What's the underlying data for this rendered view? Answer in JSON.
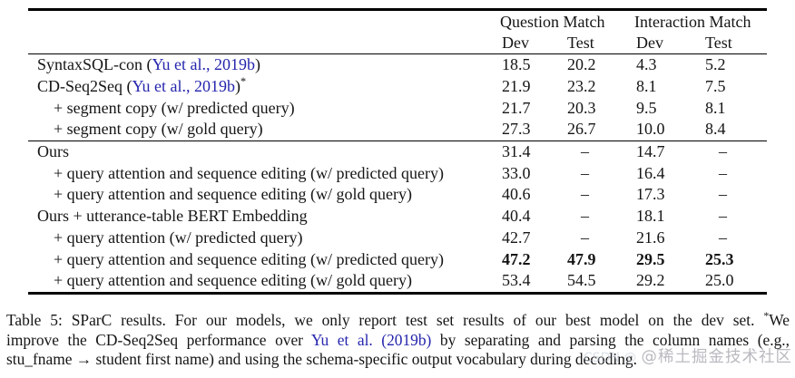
{
  "colors": {
    "citation_blue": "#2525ad",
    "text_black": "#151515",
    "rule_black": "#000000"
  },
  "table": {
    "group_headers": [
      {
        "label": "Question Match"
      },
      {
        "label": "Interaction Match"
      }
    ],
    "sub_headers": [
      "Dev",
      "Test",
      "Dev",
      "Test"
    ],
    "rows": [
      {
        "indent": false,
        "label_parts": [
          {
            "text": "SyntaxSQL-con ("
          },
          {
            "text": "Yu et al., 2019b",
            "style": "cite"
          },
          {
            "text": ")"
          }
        ],
        "values": [
          "18.5",
          "20.2",
          "4.3",
          "5.2"
        ],
        "bold_values": false,
        "rule_after": false
      },
      {
        "indent": false,
        "label_parts": [
          {
            "text": "CD-Seq2Seq ("
          },
          {
            "text": "Yu et al., 2019b",
            "style": "cite"
          },
          {
            "text": ")"
          },
          {
            "text": "*",
            "style": "sup"
          }
        ],
        "values": [
          "21.9",
          "23.2",
          "8.1",
          "7.5"
        ],
        "bold_values": false,
        "rule_after": false
      },
      {
        "indent": true,
        "label_parts": [
          {
            "text": "+ segment copy (w/ predicted query)"
          }
        ],
        "values": [
          "21.7",
          "20.3",
          "9.5",
          "8.1"
        ],
        "bold_values": false,
        "rule_after": false
      },
      {
        "indent": true,
        "label_parts": [
          {
            "text": "+ segment copy (w/ gold query)"
          }
        ],
        "values": [
          "27.3",
          "26.7",
          "10.0",
          "8.4"
        ],
        "bold_values": false,
        "rule_after": true
      },
      {
        "indent": false,
        "label_parts": [
          {
            "text": "Ours"
          }
        ],
        "values": [
          "31.4",
          "–",
          "14.7",
          "–"
        ],
        "bold_values": false,
        "rule_after": false
      },
      {
        "indent": true,
        "label_parts": [
          {
            "text": "+ query attention and sequence editing (w/ predicted query)"
          }
        ],
        "values": [
          "33.0",
          "–",
          "16.4",
          "–"
        ],
        "bold_values": false,
        "rule_after": false
      },
      {
        "indent": true,
        "label_parts": [
          {
            "text": "+ query attention and sequence editing (w/ gold query)"
          }
        ],
        "values": [
          "40.6",
          "–",
          "17.3",
          "–"
        ],
        "bold_values": false,
        "rule_after": false
      },
      {
        "indent": false,
        "label_parts": [
          {
            "text": "Ours + utterance-table BERT Embedding"
          }
        ],
        "values": [
          "40.4",
          "–",
          "18.1",
          "–"
        ],
        "bold_values": false,
        "rule_after": false
      },
      {
        "indent": true,
        "label_parts": [
          {
            "text": "+ query attention (w/ predicted query)"
          }
        ],
        "values": [
          "42.7",
          "–",
          "21.6",
          "–"
        ],
        "bold_values": false,
        "rule_after": false
      },
      {
        "indent": true,
        "label_parts": [
          {
            "text": "+ query attention and sequence editing (w/ predicted query)"
          }
        ],
        "values": [
          "47.2",
          "47.9",
          "29.5",
          "25.3"
        ],
        "bold_values": true,
        "rule_after": false
      },
      {
        "indent": true,
        "label_parts": [
          {
            "text": "+ query attention and sequence editing (w/ gold query)"
          }
        ],
        "values": [
          "53.4",
          "54.5",
          "29.2",
          "25.0"
        ],
        "bold_values": false,
        "rule_after": false
      }
    ]
  },
  "caption": {
    "lines": [
      {
        "parts": [
          {
            "text": "Table 5: SParC results. For our models, we only report test set results of our best model on the dev set. "
          },
          {
            "text": "*",
            "style": "sup"
          },
          {
            "text": "We"
          }
        ]
      },
      {
        "parts": [
          {
            "text": "improve the CD-Seq2Seq performance over "
          },
          {
            "text": "Yu et al. (2019b)",
            "style": "cite"
          },
          {
            "text": " by separating and parsing the column names (e.g.,"
          }
        ]
      },
      {
        "parts": [
          {
            "text": "stu_fname → student first name) and using the schema-specific output vocabulary during decoding."
          }
        ]
      }
    ]
  },
  "watermark": {
    "prefix": "CSDN @",
    "text": "@稀土掘金技术社区"
  }
}
